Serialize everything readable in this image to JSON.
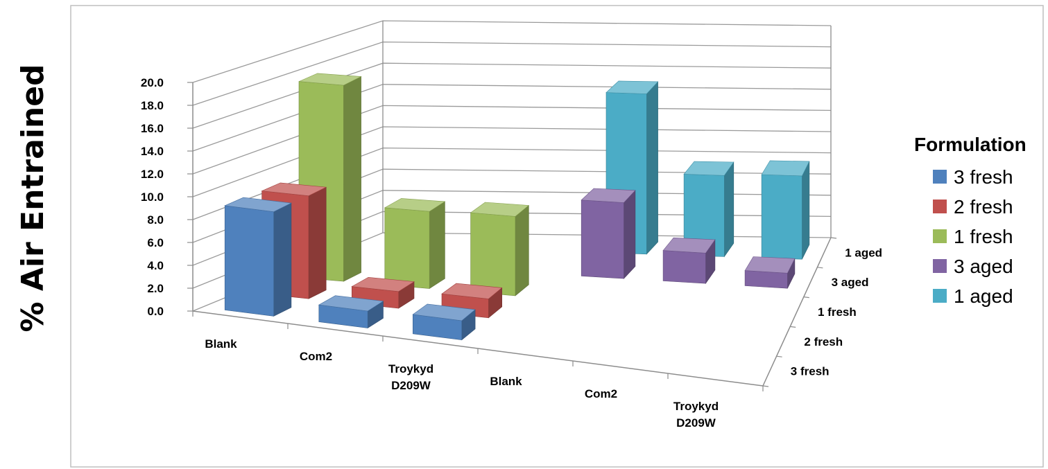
{
  "chart_data": {
    "type": "bar",
    "subtype": "3d-column",
    "title": "",
    "ylabel": "% Air Entrained",
    "ylim": [
      0,
      20
    ],
    "yticks": [
      "0.0",
      "2.0",
      "4.0",
      "6.0",
      "8.0",
      "10.0",
      "12.0",
      "14.0",
      "16.0",
      "18.0",
      "20.0"
    ],
    "categories": [
      "Blank",
      "Com2",
      "Troykyd D209W",
      "Blank",
      "Com2",
      "Troykyd D209W"
    ],
    "depth_labels": [
      "1 aged",
      "3 aged",
      "1 fresh",
      "2 fresh",
      "3 fresh"
    ],
    "legend_title": "Formulation",
    "legend_position": "right",
    "grid": true,
    "series": [
      {
        "name": "3 fresh",
        "color": "#4F81BD",
        "values": [
          9.2,
          1.5,
          1.7,
          null,
          null,
          null
        ]
      },
      {
        "name": "2 fresh",
        "color": "#C0504D",
        "values": [
          9.2,
          1.5,
          1.7,
          null,
          null,
          null
        ]
      },
      {
        "name": "1 fresh",
        "color": "#9BBB59",
        "values": [
          17.8,
          7.0,
          7.2,
          null,
          null,
          null
        ]
      },
      {
        "name": "3 aged",
        "color": "#8064A2",
        "values": [
          null,
          null,
          null,
          7.0,
          2.8,
          1.4
        ]
      },
      {
        "name": "1 aged",
        "color": "#4BACC6",
        "values": [
          null,
          null,
          null,
          15.0,
          7.6,
          7.8
        ]
      }
    ]
  }
}
